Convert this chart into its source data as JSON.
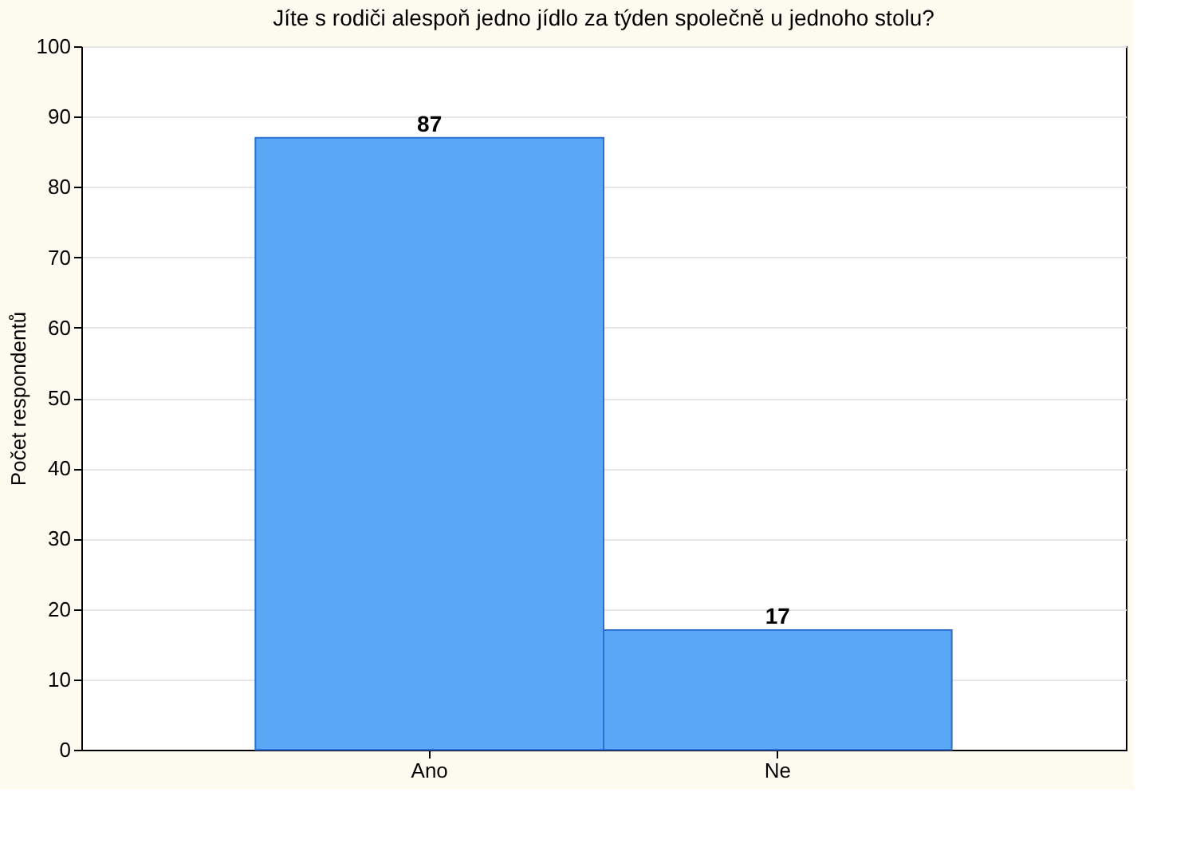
{
  "chart_data": {
    "type": "bar",
    "title": "Jíte s rodiči alespoň jedno jídlo za týden společně u jednoho stolu?",
    "ylabel": "Počet respondentů",
    "categories": [
      "Ano",
      "Ne"
    ],
    "values": [
      87,
      17
    ],
    "color": "#5aa8f5",
    "ylim": [
      0,
      100
    ],
    "yticks": [
      0,
      10,
      20,
      30,
      40,
      50,
      60,
      70,
      80,
      90,
      100
    ],
    "grid": "y",
    "data_labels": true
  }
}
